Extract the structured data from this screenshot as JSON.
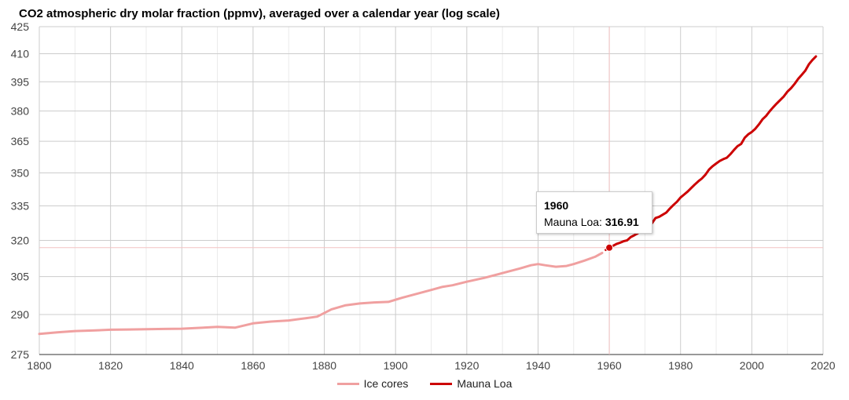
{
  "chart_data": {
    "type": "line",
    "title": "CO2 atmospheric dry molar fraction (ppmv), averaged over a calendar year (log scale)",
    "xlabel": "",
    "ylabel": "",
    "xlim": [
      1800,
      2020
    ],
    "ylim": [
      275,
      425
    ],
    "y_scale": "log",
    "grid": true,
    "legend_position": "bottom",
    "x_ticks": [
      "1800",
      "1820",
      "1840",
      "1860",
      "1880",
      "1900",
      "1920",
      "1940",
      "1960",
      "1980",
      "2000",
      "2020"
    ],
    "y_ticks": [
      "275",
      "290",
      "305",
      "320",
      "335",
      "350",
      "365",
      "380",
      "395",
      "410",
      "425"
    ],
    "series": [
      {
        "name": "Ice cores",
        "color": "#f0a0a0",
        "points": [
          [
            1800,
            282.6
          ],
          [
            1805,
            283.2
          ],
          [
            1810,
            283.7
          ],
          [
            1815,
            283.9
          ],
          [
            1820,
            284.2
          ],
          [
            1825,
            284.3
          ],
          [
            1830,
            284.4
          ],
          [
            1835,
            284.5
          ],
          [
            1840,
            284.6
          ],
          [
            1845,
            284.9
          ],
          [
            1850,
            285.3
          ],
          [
            1855,
            285.0
          ],
          [
            1860,
            286.6
          ],
          [
            1865,
            287.3
          ],
          [
            1870,
            287.7
          ],
          [
            1875,
            288.6
          ],
          [
            1878,
            289.2
          ],
          [
            1882,
            292.0
          ],
          [
            1886,
            293.6
          ],
          [
            1890,
            294.3
          ],
          [
            1894,
            294.7
          ],
          [
            1898,
            294.9
          ],
          [
            1902,
            296.6
          ],
          [
            1906,
            298.1
          ],
          [
            1910,
            299.6
          ],
          [
            1913,
            300.8
          ],
          [
            1916,
            301.5
          ],
          [
            1920,
            302.9
          ],
          [
            1925,
            304.5
          ],
          [
            1930,
            306.4
          ],
          [
            1935,
            308.3
          ],
          [
            1938,
            309.6
          ],
          [
            1940,
            310.1
          ],
          [
            1942,
            309.6
          ],
          [
            1945,
            309.0
          ],
          [
            1948,
            309.3
          ],
          [
            1950,
            310.1
          ],
          [
            1953,
            311.5
          ],
          [
            1956,
            313.1
          ],
          [
            1958,
            314.7
          ]
        ]
      },
      {
        "name": "Mauna Loa",
        "color": "#cc0000",
        "points": [
          [
            1959,
            315.97
          ],
          [
            1960,
            316.91
          ],
          [
            1961,
            317.64
          ],
          [
            1962,
            318.45
          ],
          [
            1963,
            318.99
          ],
          [
            1964,
            319.62
          ],
          [
            1965,
            320.04
          ],
          [
            1966,
            321.38
          ],
          [
            1967,
            322.16
          ],
          [
            1968,
            323.04
          ],
          [
            1969,
            324.62
          ],
          [
            1970,
            325.68
          ],
          [
            1971,
            326.32
          ],
          [
            1972,
            327.45
          ],
          [
            1973,
            329.68
          ],
          [
            1974,
            330.18
          ],
          [
            1975,
            331.11
          ],
          [
            1976,
            332.04
          ],
          [
            1977,
            333.83
          ],
          [
            1978,
            335.4
          ],
          [
            1979,
            336.84
          ],
          [
            1980,
            338.75
          ],
          [
            1981,
            340.11
          ],
          [
            1982,
            341.45
          ],
          [
            1983,
            343.05
          ],
          [
            1984,
            344.65
          ],
          [
            1985,
            346.12
          ],
          [
            1986,
            347.42
          ],
          [
            1987,
            349.19
          ],
          [
            1988,
            351.57
          ],
          [
            1989,
            353.12
          ],
          [
            1990,
            354.39
          ],
          [
            1991,
            355.61
          ],
          [
            1992,
            356.45
          ],
          [
            1993,
            357.1
          ],
          [
            1994,
            358.83
          ],
          [
            1995,
            360.82
          ],
          [
            1996,
            362.61
          ],
          [
            1997,
            363.73
          ],
          [
            1998,
            366.7
          ],
          [
            1999,
            368.38
          ],
          [
            2000,
            369.55
          ],
          [
            2001,
            371.14
          ],
          [
            2002,
            373.28
          ],
          [
            2003,
            375.8
          ],
          [
            2004,
            377.52
          ],
          [
            2005,
            379.8
          ],
          [
            2006,
            381.9
          ],
          [
            2007,
            383.79
          ],
          [
            2008,
            385.6
          ],
          [
            2009,
            387.43
          ],
          [
            2010,
            389.9
          ],
          [
            2011,
            391.65
          ],
          [
            2012,
            393.85
          ],
          [
            2013,
            396.52
          ],
          [
            2014,
            398.65
          ],
          [
            2015,
            400.83
          ],
          [
            2016,
            404.24
          ],
          [
            2017,
            406.55
          ],
          [
            2018,
            408.52
          ]
        ]
      }
    ],
    "highlight": {
      "x": 1960,
      "y": 316.91,
      "series": "Mauna Loa",
      "year_label": "1960",
      "series_label": "Mauna Loa: ",
      "value_label": "316.91"
    }
  }
}
